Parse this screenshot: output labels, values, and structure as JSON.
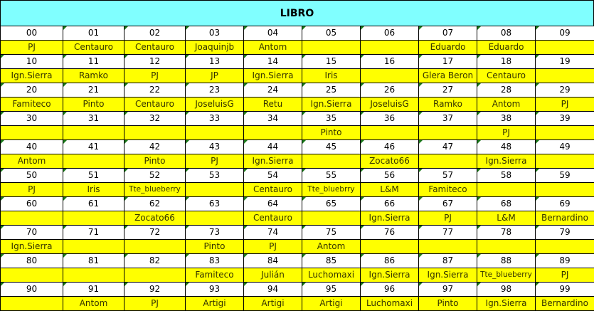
{
  "title": "LIBRO",
  "colors": {
    "title_bg": "#80FFFF",
    "name_bg": "#FFFF00",
    "marker": "#1a7a1a"
  },
  "rows": [
    {
      "numbers": [
        "00",
        "01",
        "02",
        "03",
        "04",
        "05",
        "06",
        "07",
        "08",
        "09"
      ],
      "names": [
        "PJ",
        "Centauro",
        "Centauro",
        "Joaquinjb",
        "Antom",
        "",
        "",
        "Eduardo",
        "Eduardo",
        ""
      ]
    },
    {
      "numbers": [
        "10",
        "11",
        "12",
        "13",
        "14",
        "15",
        "16",
        "17",
        "18",
        "19"
      ],
      "names": [
        "Ign.Sierra",
        "Ramko",
        "PJ",
        "JP",
        "Ign.Sierra",
        "Iris",
        "",
        "Glera Beron",
        "Centauro",
        ""
      ]
    },
    {
      "numbers": [
        "20",
        "21",
        "22",
        "23",
        "24",
        "25",
        "26",
        "27",
        "28",
        "29"
      ],
      "names": [
        "Famiteco",
        "Pinto",
        "Centauro",
        "JoseluisG",
        "Retu",
        "Ign.Sierra",
        "JoseluisG",
        "Ramko",
        "Antom",
        "PJ"
      ]
    },
    {
      "numbers": [
        "30",
        "31",
        "32",
        "33",
        "34",
        "35",
        "36",
        "37",
        "38",
        "39"
      ],
      "names": [
        "",
        "",
        "",
        "",
        "",
        "Pinto",
        "",
        "",
        "PJ",
        ""
      ]
    },
    {
      "numbers": [
        "40",
        "41",
        "42",
        "43",
        "44",
        "45",
        "46",
        "47",
        "48",
        "49"
      ],
      "names": [
        "Antom",
        "",
        "Pinto",
        "PJ",
        "Ign.Sierra",
        "",
        "Zocato66",
        "",
        "Ign.Sierra",
        ""
      ]
    },
    {
      "numbers": [
        "50",
        "51",
        "52",
        "53",
        "54",
        "55",
        "56",
        "57",
        "58",
        "59"
      ],
      "names": [
        "PJ",
        "Iris",
        "Tte_blueberry",
        "",
        "Centauro",
        "Tte_bluebrry",
        "L&M",
        "Famiteco",
        "",
        ""
      ]
    },
    {
      "numbers": [
        "60",
        "61",
        "62",
        "63",
        "64",
        "65",
        "66",
        "67",
        "68",
        "69"
      ],
      "names": [
        "",
        "",
        "Zocato66",
        "",
        "Centauro",
        "",
        "Ign.Sierra",
        "PJ",
        "L&M",
        "Bernardino"
      ]
    },
    {
      "numbers": [
        "70",
        "71",
        "72",
        "73",
        "74",
        "75",
        "76",
        "77",
        "78",
        "79"
      ],
      "names": [
        "Ign.Sierra",
        "",
        "",
        "Pinto",
        "PJ",
        "Antom",
        "",
        "",
        "",
        ""
      ]
    },
    {
      "numbers": [
        "80",
        "81",
        "82",
        "83",
        "84",
        "85",
        "86",
        "87",
        "88",
        "89"
      ],
      "names": [
        "",
        "",
        "",
        "Famiteco",
        "Julián",
        "Luchomaxi",
        "Ign.Sierra",
        "Ign.Sierra",
        "Tte_blueberry",
        "PJ"
      ]
    },
    {
      "numbers": [
        "90",
        "91",
        "92",
        "93",
        "94",
        "95",
        "96",
        "97",
        "98",
        "99"
      ],
      "names": [
        "",
        "Antom",
        "PJ",
        "Artigi",
        "Artigi",
        "Artigi",
        "Luchomaxi",
        "Pinto",
        "Ign.Sierra",
        "Bernardino"
      ]
    }
  ]
}
